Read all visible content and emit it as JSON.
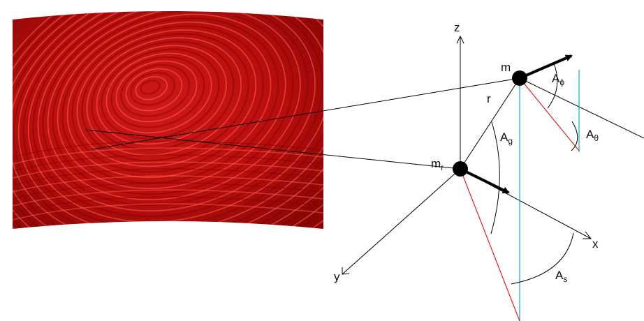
{
  "figure": {
    "axes": {
      "z": "z",
      "x": "x",
      "y": "y"
    },
    "points": {
      "minutia": "m",
      "reference_main": "m",
      "reference_sub": "r"
    },
    "distance": "r",
    "angles": [
      {
        "main": "A",
        "sub": "ϕ"
      },
      {
        "main": "A",
        "sub": "θ"
      },
      {
        "main": "A",
        "sub": "g"
      },
      {
        "main": "A",
        "sub": "s"
      }
    ],
    "colors": {
      "background": "#ffffff",
      "fingerprint": "#b80d0d",
      "fingerprint_dark": "#7a0505",
      "ridge": "#ff5a4a",
      "line": "#000000",
      "red_line": "#e02020",
      "blue_line": "#1a9fd8"
    }
  }
}
